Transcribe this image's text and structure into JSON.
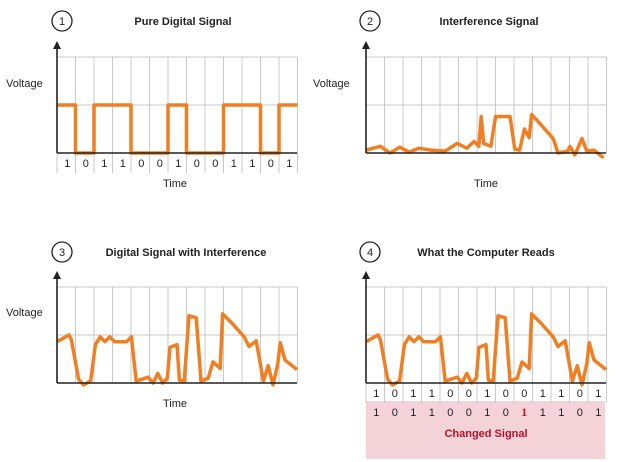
{
  "panels": [
    {
      "number": "1",
      "title": "Pure Digital Signal",
      "ylabel": "Voltage",
      "xlabel": "Time",
      "bits": [
        "1",
        "0",
        "1",
        "1",
        "0",
        "0",
        "1",
        "0",
        "0",
        "1",
        "1",
        "0",
        "1"
      ]
    },
    {
      "number": "2",
      "title": "Interference Signal",
      "ylabel": "Voltage",
      "xlabel": "Time"
    },
    {
      "number": "3",
      "title": "Digital Signal with Interference",
      "ylabel": "Voltage",
      "xlabel": "Time"
    },
    {
      "number": "4",
      "title": "What the Computer Reads",
      "bits": [
        "1",
        "0",
        "1",
        "1",
        "0",
        "0",
        "1",
        "0",
        "0",
        "1",
        "1",
        "0",
        "1"
      ],
      "read_bits": [
        "1",
        "0",
        "1",
        "1",
        "0",
        "0",
        "1",
        "0",
        "1",
        "1",
        "1",
        "0",
        "1"
      ],
      "changed_index": 8,
      "changed_label": "Changed Signal"
    }
  ],
  "colors": {
    "signal": "#f07f23",
    "grid": "#c8c8c8",
    "axis": "#222222",
    "changed_bg": "#f4d3d8",
    "changed_text": "#b3122a"
  }
}
